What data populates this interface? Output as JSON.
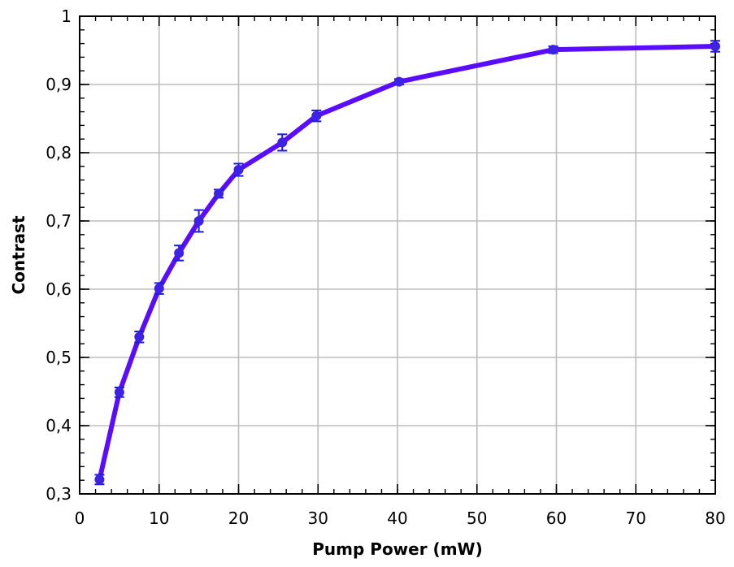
{
  "chart_data": {
    "type": "line",
    "xlabel": "Pump Power (mW)",
    "ylabel": "Contrast",
    "xlim": [
      0,
      80
    ],
    "ylim": [
      0.3,
      1.0
    ],
    "x_ticks": [
      0,
      10,
      20,
      30,
      40,
      50,
      60,
      70,
      80
    ],
    "x_tick_labels": [
      "0",
      "10",
      "20",
      "30",
      "40",
      "50",
      "60",
      "70",
      "80"
    ],
    "y_ticks": [
      0.3,
      0.4,
      0.5,
      0.6,
      0.7,
      0.8,
      0.9,
      1.0
    ],
    "y_tick_labels": [
      "0,3",
      "0,4",
      "0,5",
      "0,6",
      "0,7",
      "0,8",
      "0,9",
      "1"
    ],
    "grid": true,
    "legend": "none",
    "series": [
      {
        "color": "#5a0cff",
        "marker_color": "#3d22e6",
        "errorbar_color": "#1a1adc",
        "x": [
          2.5,
          5,
          7.5,
          10,
          12.5,
          15,
          17.5,
          20,
          25.5,
          29.8,
          40.2,
          59.6,
          80
        ],
        "y": [
          0.321,
          0.449,
          0.53,
          0.601,
          0.653,
          0.7,
          0.74,
          0.775,
          0.815,
          0.854,
          0.904,
          0.951,
          0.956
        ],
        "yerr": [
          0.007,
          0.007,
          0.008,
          0.008,
          0.011,
          0.016,
          0.006,
          0.009,
          0.012,
          0.008,
          0.004,
          0.005,
          0.008
        ]
      }
    ]
  }
}
